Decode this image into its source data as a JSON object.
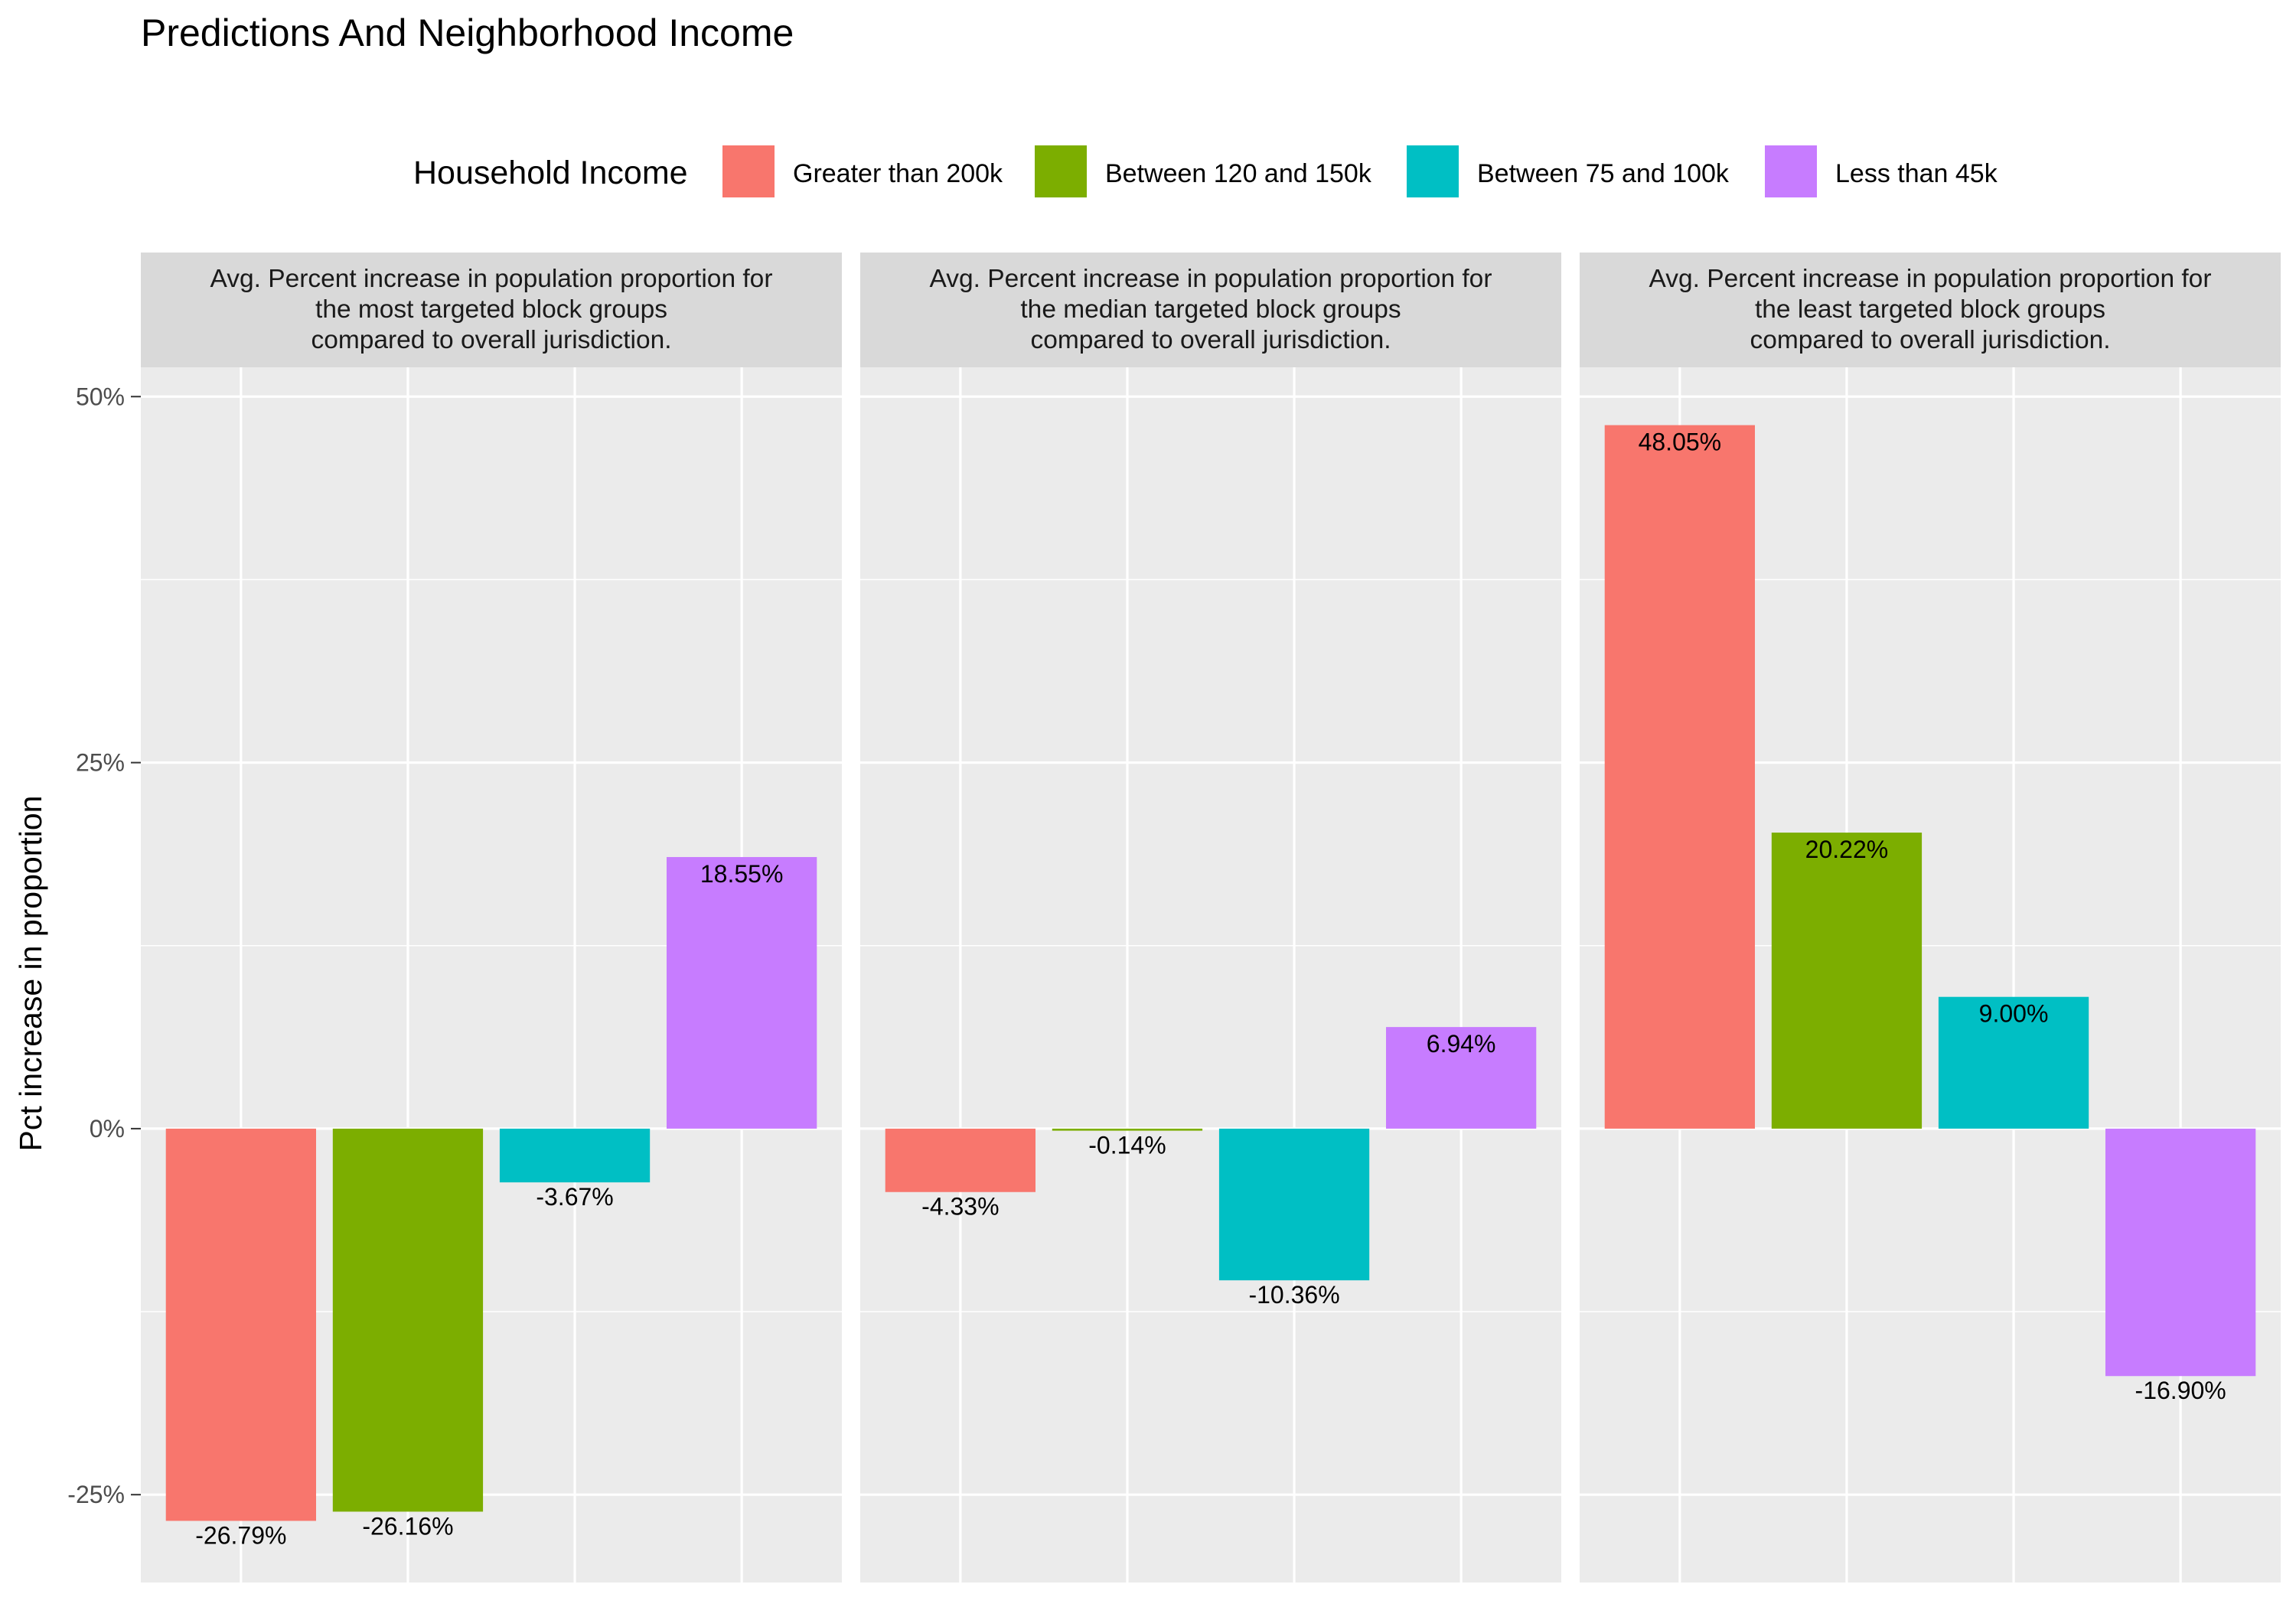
{
  "chart_data": {
    "type": "bar",
    "title": "Predictions And Neighborhood Income",
    "ylabel": "Pct increase in proportion",
    "xlabel": "",
    "ylim": [
      -31,
      52
    ],
    "yticks": [
      -25,
      0,
      25,
      50
    ],
    "ytick_labels": [
      "-25%",
      "0%",
      "25%",
      "50%"
    ],
    "grid": true,
    "legend": {
      "title": "Household Income",
      "position": "top",
      "entries": [
        {
          "label": "Greater than 200k",
          "color": "#F8766D"
        },
        {
          "label": "Between 120 and 150k",
          "color": "#7CAE00"
        },
        {
          "label": "Between 75 and 100k",
          "color": "#00BFC4"
        },
        {
          "label": "Less than 45k",
          "color": "#C77CFF"
        }
      ]
    },
    "panels": [
      {
        "strip_lines": [
          "Avg. Percent increase in population proportion for",
          "the most targeted block groups",
          "compared to overall jurisdiction."
        ],
        "values": [
          -26.79,
          -26.16,
          -3.67,
          18.55
        ],
        "labels": [
          "-26.79%",
          "-26.16%",
          "-3.67%",
          "18.55%"
        ]
      },
      {
        "strip_lines": [
          "Avg. Percent increase in population proportion for",
          "the median targeted block groups",
          "compared to overall jurisdiction."
        ],
        "values": [
          -4.33,
          -0.14,
          -10.36,
          6.94
        ],
        "labels": [
          "-4.33%",
          "-0.14%",
          "-10.36%",
          "6.94%"
        ]
      },
      {
        "strip_lines": [
          "Avg. Percent increase in population proportion for",
          "the least targeted block groups",
          "compared to overall jurisdiction."
        ],
        "values": [
          48.05,
          20.22,
          9.0,
          -16.9
        ],
        "labels": [
          "48.05%",
          "20.22%",
          "9.00%",
          "-16.90%"
        ]
      }
    ]
  },
  "colors": {
    "panel_background": "#EBEBEB",
    "strip_background": "#D9D9D9",
    "grid": "#FFFFFF"
  }
}
